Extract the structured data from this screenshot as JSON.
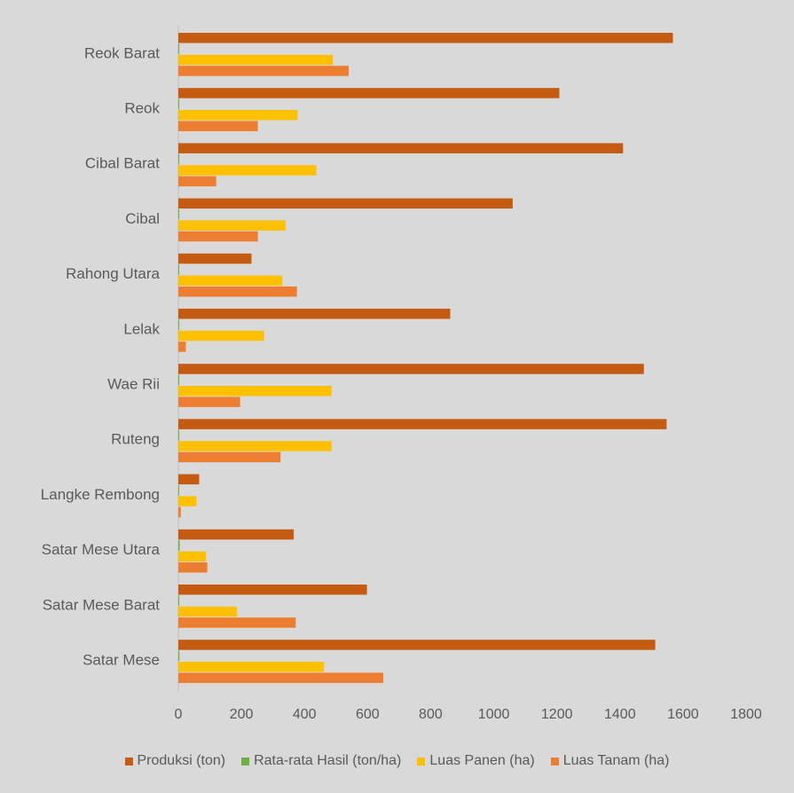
{
  "chart_data": {
    "type": "bar",
    "orientation": "horizontal",
    "categories": [
      "Reok Barat",
      "Reok",
      "Cibal Barat",
      "Cibal",
      "Rahong Utara",
      "Lelak",
      "Wae Rii",
      "Ruteng",
      "Langke Rembong",
      "Satar Mese Utara",
      "Satar Mese Barat",
      "Satar Mese"
    ],
    "series": [
      {
        "name": "Produksi (ton)",
        "color": "#c55a11",
        "values": [
          1568,
          1208,
          1410,
          1060,
          232,
          862,
          1476,
          1548,
          66,
          366,
          598,
          1512
        ]
      },
      {
        "name": "Rata-rata Hasil (ton/ha)",
        "color": "#70ad47",
        "values": [
          3.2,
          3.2,
          3.2,
          3.1,
          0.7,
          3.2,
          3.0,
          3.2,
          1.1,
          4.3,
          3.2,
          3.3
        ]
      },
      {
        "name": "Luas Panen (ha)",
        "color": "#ffc000",
        "values": [
          490,
          378,
          438,
          340,
          330,
          272,
          486,
          486,
          58,
          88,
          186,
          462
        ]
      },
      {
        "name": "Luas Tanam (ha)",
        "color": "#ed7d31",
        "values": [
          540,
          252,
          120,
          252,
          376,
          24,
          196,
          324,
          8,
          92,
          372,
          650
        ]
      }
    ],
    "xticks": [
      "0",
      "200",
      "400",
      "600",
      "800",
      "1000",
      "1200",
      "1400",
      "1600",
      "1800"
    ],
    "xlim": [
      0,
      1800
    ],
    "title": "",
    "xlabel": "",
    "ylabel": "",
    "grid": false,
    "legend_position": "bottom"
  }
}
